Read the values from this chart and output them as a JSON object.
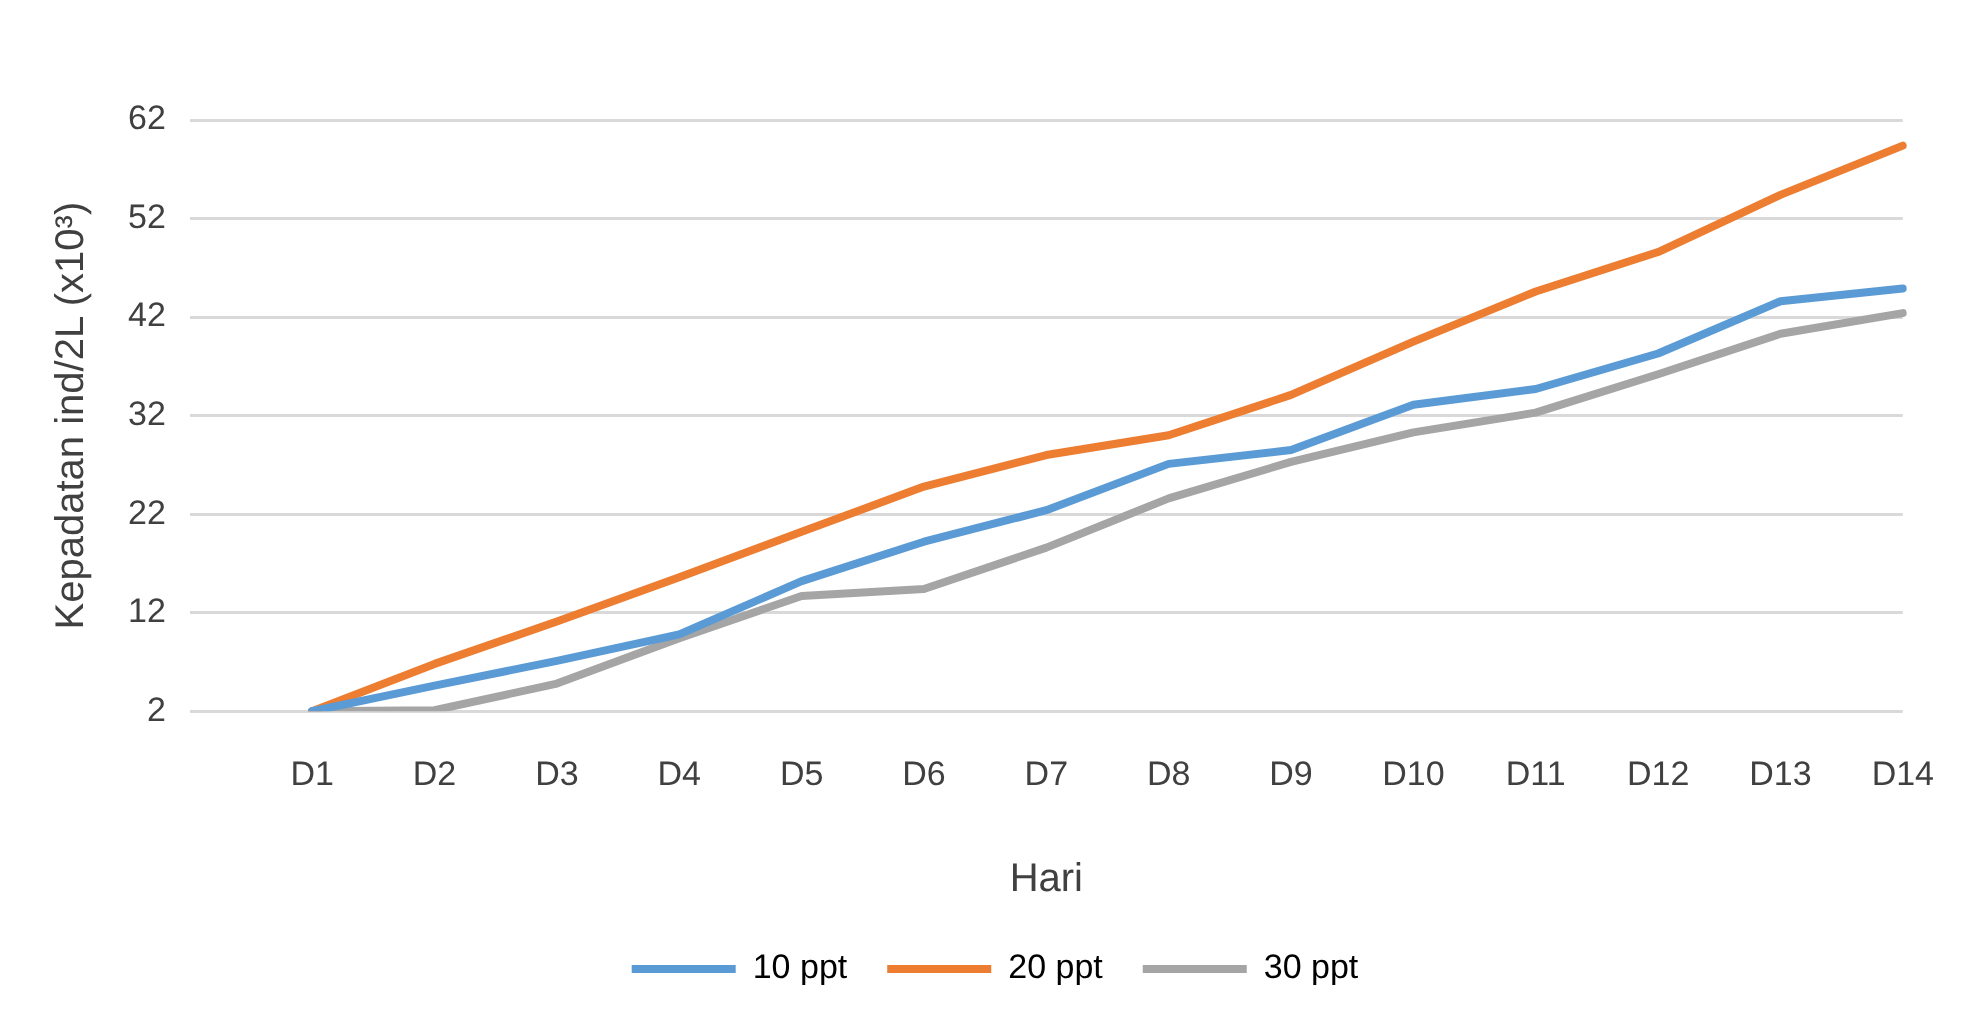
{
  "chart_data": {
    "type": "line",
    "xlabel": "Hari",
    "ylabel": "Kepadatan ind/2L (x10³)",
    "categories": [
      null,
      "D1",
      "D2",
      "D3",
      "D4",
      "D5",
      "D6",
      "D7",
      "D8",
      "D9",
      "D10",
      "D11",
      "D12",
      "D13",
      "D14"
    ],
    "series": [
      {
        "name": "10 ppt",
        "color": "#5b9bd5",
        "values": [
          null,
          2,
          4.6,
          7.1,
          9.8,
          15.2,
          19.2,
          22.4,
          27.1,
          28.5,
          33.1,
          34.7,
          38.3,
          43.6,
          44.9
        ]
      },
      {
        "name": "20 ppt",
        "color": "#ed7d31",
        "values": [
          null,
          2,
          6.8,
          11.1,
          15.6,
          20.2,
          24.8,
          28.0,
          30.0,
          34.1,
          39.5,
          44.6,
          48.6,
          54.4,
          59.4
        ]
      },
      {
        "name": "30 ppt",
        "color": "#a5a5a5",
        "values": [
          null,
          2,
          2.1,
          4.8,
          9.4,
          13.7,
          14.4,
          18.6,
          23.6,
          27.3,
          30.3,
          32.3,
          36.2,
          40.3,
          42.4
        ]
      }
    ],
    "ylim": [
      2,
      62
    ],
    "yticks": [
      2,
      12,
      22,
      32,
      42,
      52,
      62
    ],
    "grid": "y",
    "legend": "bottom",
    "marker": "none",
    "line_style": "solid"
  }
}
